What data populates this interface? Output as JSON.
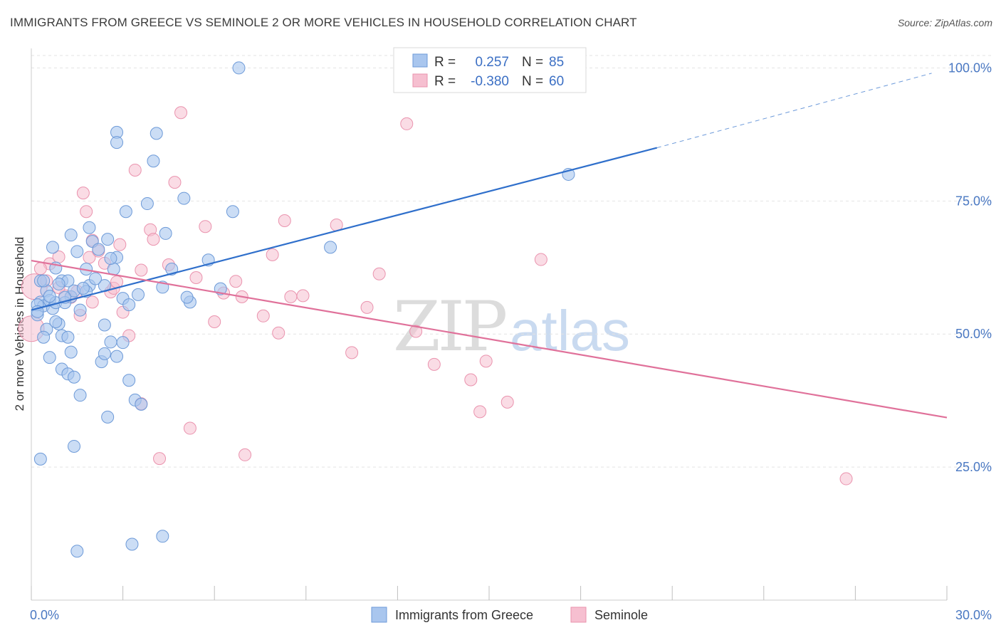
{
  "header": {
    "title": "IMMIGRANTS FROM GREECE VS SEMINOLE 2 OR MORE VEHICLES IN HOUSEHOLD CORRELATION CHART",
    "source": "Source: ZipAtlas.com"
  },
  "watermark": {
    "zip": "ZIP",
    "atlas": "atlas"
  },
  "colors": {
    "blue_fill": "#a9c6ee",
    "blue_stroke": "#6d9ad8",
    "blue_line": "#2f6fcb",
    "pink_fill": "#f6bfd0",
    "pink_stroke": "#ea93ae",
    "pink_line": "#e0719a",
    "tick_color": "#4a78c2",
    "grid": "#e3e3e3"
  },
  "legend": {
    "rows": [
      {
        "r_label": "R =",
        "r_value": "0.257",
        "n_label": "N =",
        "n_value": "85"
      },
      {
        "r_label": "R =",
        "r_value": "-0.380",
        "n_label": "N =",
        "n_value": "60"
      }
    ]
  },
  "chart_data": {
    "type": "scatter",
    "title": "IMMIGRANTS FROM GREECE VS SEMINOLE 2 OR MORE VEHICLES IN HOUSEHOLD CORRELATION CHART",
    "xlabel": "",
    "ylabel": "2 or more Vehicles in Household",
    "xlim": [
      0,
      30
    ],
    "ylim": [
      0,
      103
    ],
    "x_tick_labels": [
      "0.0%",
      "30.0%"
    ],
    "y_ticks": [
      25,
      50,
      75,
      100
    ],
    "y_tick_labels": [
      "25.0%",
      "50.0%",
      "75.0%",
      "100.0%"
    ],
    "grid": true,
    "legend_placement": "top-center",
    "series": [
      {
        "name": "Immigrants from Greece",
        "color": "#a9c6ee",
        "trend": {
          "x": [
            0,
            20.5
          ],
          "y": [
            54.5,
            85.0
          ],
          "dashed_to": [
            29.5,
            99.0
          ]
        },
        "points": [
          [
            0.2,
            53.6
          ],
          [
            0.3,
            56.0
          ],
          [
            0.4,
            55.3
          ],
          [
            0.5,
            58.1
          ],
          [
            0.2,
            55.5
          ],
          [
            0.6,
            56.3
          ],
          [
            0.7,
            54.8
          ],
          [
            0.3,
            60.0
          ],
          [
            0.8,
            55.9
          ],
          [
            0.9,
            51.9
          ],
          [
            1.0,
            60.0
          ],
          [
            0.7,
            66.3
          ],
          [
            1.2,
            60.0
          ],
          [
            1.3,
            57.0
          ],
          [
            1.1,
            55.9
          ],
          [
            1.4,
            58.1
          ],
          [
            1.6,
            54.5
          ],
          [
            1.5,
            65.5
          ],
          [
            1.3,
            68.6
          ],
          [
            1.8,
            62.2
          ],
          [
            1.9,
            59.1
          ],
          [
            2.0,
            67.4
          ],
          [
            2.2,
            65.9
          ],
          [
            2.4,
            59.1
          ],
          [
            2.5,
            67.8
          ],
          [
            2.7,
            62.2
          ],
          [
            2.8,
            64.4
          ],
          [
            3.0,
            56.7
          ],
          [
            3.2,
            55.5
          ],
          [
            3.1,
            73.0
          ],
          [
            3.8,
            74.5
          ],
          [
            4.0,
            82.5
          ],
          [
            4.1,
            87.7
          ],
          [
            4.4,
            68.9
          ],
          [
            4.6,
            62.2
          ],
          [
            4.3,
            58.8
          ],
          [
            2.8,
            87.9
          ],
          [
            2.8,
            86.0
          ],
          [
            5.0,
            75.5
          ],
          [
            5.2,
            56.0
          ],
          [
            5.8,
            63.9
          ],
          [
            6.2,
            58.5
          ],
          [
            6.6,
            73.0
          ],
          [
            6.8,
            100.0
          ],
          [
            9.8,
            66.3
          ],
          [
            17.6,
            80.0
          ],
          [
            1.0,
            49.7
          ],
          [
            1.2,
            49.4
          ],
          [
            1.3,
            46.6
          ],
          [
            0.6,
            45.6
          ],
          [
            1.0,
            43.4
          ],
          [
            1.2,
            42.5
          ],
          [
            1.4,
            41.9
          ],
          [
            1.6,
            38.5
          ],
          [
            2.3,
            44.8
          ],
          [
            2.4,
            46.3
          ],
          [
            2.6,
            48.5
          ],
          [
            2.8,
            45.8
          ],
          [
            3.0,
            48.4
          ],
          [
            3.2,
            41.3
          ],
          [
            3.4,
            37.6
          ],
          [
            3.6,
            36.8
          ],
          [
            2.5,
            34.4
          ],
          [
            1.4,
            28.9
          ],
          [
            0.3,
            26.5
          ],
          [
            1.5,
            9.2
          ],
          [
            3.3,
            10.5
          ],
          [
            4.3,
            12.0
          ],
          [
            0.5,
            50.9
          ],
          [
            0.8,
            52.3
          ],
          [
            0.4,
            60.0
          ],
          [
            0.9,
            59.4
          ],
          [
            1.8,
            58.0
          ],
          [
            2.1,
            60.4
          ],
          [
            0.2,
            54.2
          ],
          [
            0.6,
            57.1
          ],
          [
            1.1,
            56.9
          ],
          [
            2.6,
            64.2
          ],
          [
            1.7,
            58.6
          ],
          [
            3.5,
            57.4
          ],
          [
            0.4,
            49.4
          ],
          [
            5.1,
            56.9
          ],
          [
            2.4,
            51.7
          ],
          [
            0.8,
            62.4
          ],
          [
            1.9,
            70.0
          ]
        ]
      },
      {
        "name": "Seminole",
        "color": "#f6bfd0",
        "trend": {
          "x": [
            0,
            30
          ],
          "y": [
            63.8,
            34.3
          ]
        },
        "points": [
          [
            0.0,
            51.0
          ],
          [
            0.1,
            58.9
          ],
          [
            0.5,
            60.0
          ],
          [
            0.6,
            63.2
          ],
          [
            0.9,
            64.5
          ],
          [
            1.1,
            57.2
          ],
          [
            1.3,
            56.9
          ],
          [
            1.5,
            58.0
          ],
          [
            1.6,
            53.5
          ],
          [
            1.7,
            76.5
          ],
          [
            1.8,
            73.0
          ],
          [
            1.9,
            64.4
          ],
          [
            2.0,
            67.6
          ],
          [
            2.2,
            65.6
          ],
          [
            2.4,
            63.3
          ],
          [
            2.6,
            57.9
          ],
          [
            2.7,
            58.6
          ],
          [
            2.8,
            59.8
          ],
          [
            2.9,
            66.8
          ],
          [
            3.0,
            54.1
          ],
          [
            3.2,
            49.7
          ],
          [
            3.4,
            80.8
          ],
          [
            3.6,
            62.0
          ],
          [
            3.9,
            69.6
          ],
          [
            4.0,
            67.8
          ],
          [
            4.2,
            26.6
          ],
          [
            4.5,
            63.0
          ],
          [
            4.7,
            78.5
          ],
          [
            4.9,
            91.6
          ],
          [
            5.2,
            32.3
          ],
          [
            5.4,
            60.6
          ],
          [
            5.7,
            70.2
          ],
          [
            6.0,
            52.3
          ],
          [
            6.3,
            57.7
          ],
          [
            6.7,
            59.9
          ],
          [
            6.9,
            57.0
          ],
          [
            7.0,
            27.3
          ],
          [
            7.6,
            53.4
          ],
          [
            7.9,
            64.9
          ],
          [
            8.1,
            50.2
          ],
          [
            8.3,
            71.3
          ],
          [
            8.5,
            57.0
          ],
          [
            8.9,
            57.2
          ],
          [
            10.0,
            70.5
          ],
          [
            10.5,
            46.5
          ],
          [
            11.0,
            55.0
          ],
          [
            11.4,
            61.3
          ],
          [
            12.3,
            89.5
          ],
          [
            12.6,
            50.5
          ],
          [
            13.2,
            44.3
          ],
          [
            14.4,
            41.4
          ],
          [
            14.7,
            35.4
          ],
          [
            14.9,
            44.9
          ],
          [
            15.6,
            37.2
          ],
          [
            16.7,
            64.0
          ],
          [
            26.7,
            22.8
          ],
          [
            0.3,
            62.3
          ],
          [
            0.9,
            58.7
          ],
          [
            3.6,
            36.9
          ],
          [
            2.0,
            56.0
          ]
        ]
      }
    ]
  },
  "bottom_legend": {
    "items": [
      {
        "label": "Immigrants from Greece"
      },
      {
        "label": "Seminole"
      }
    ]
  }
}
